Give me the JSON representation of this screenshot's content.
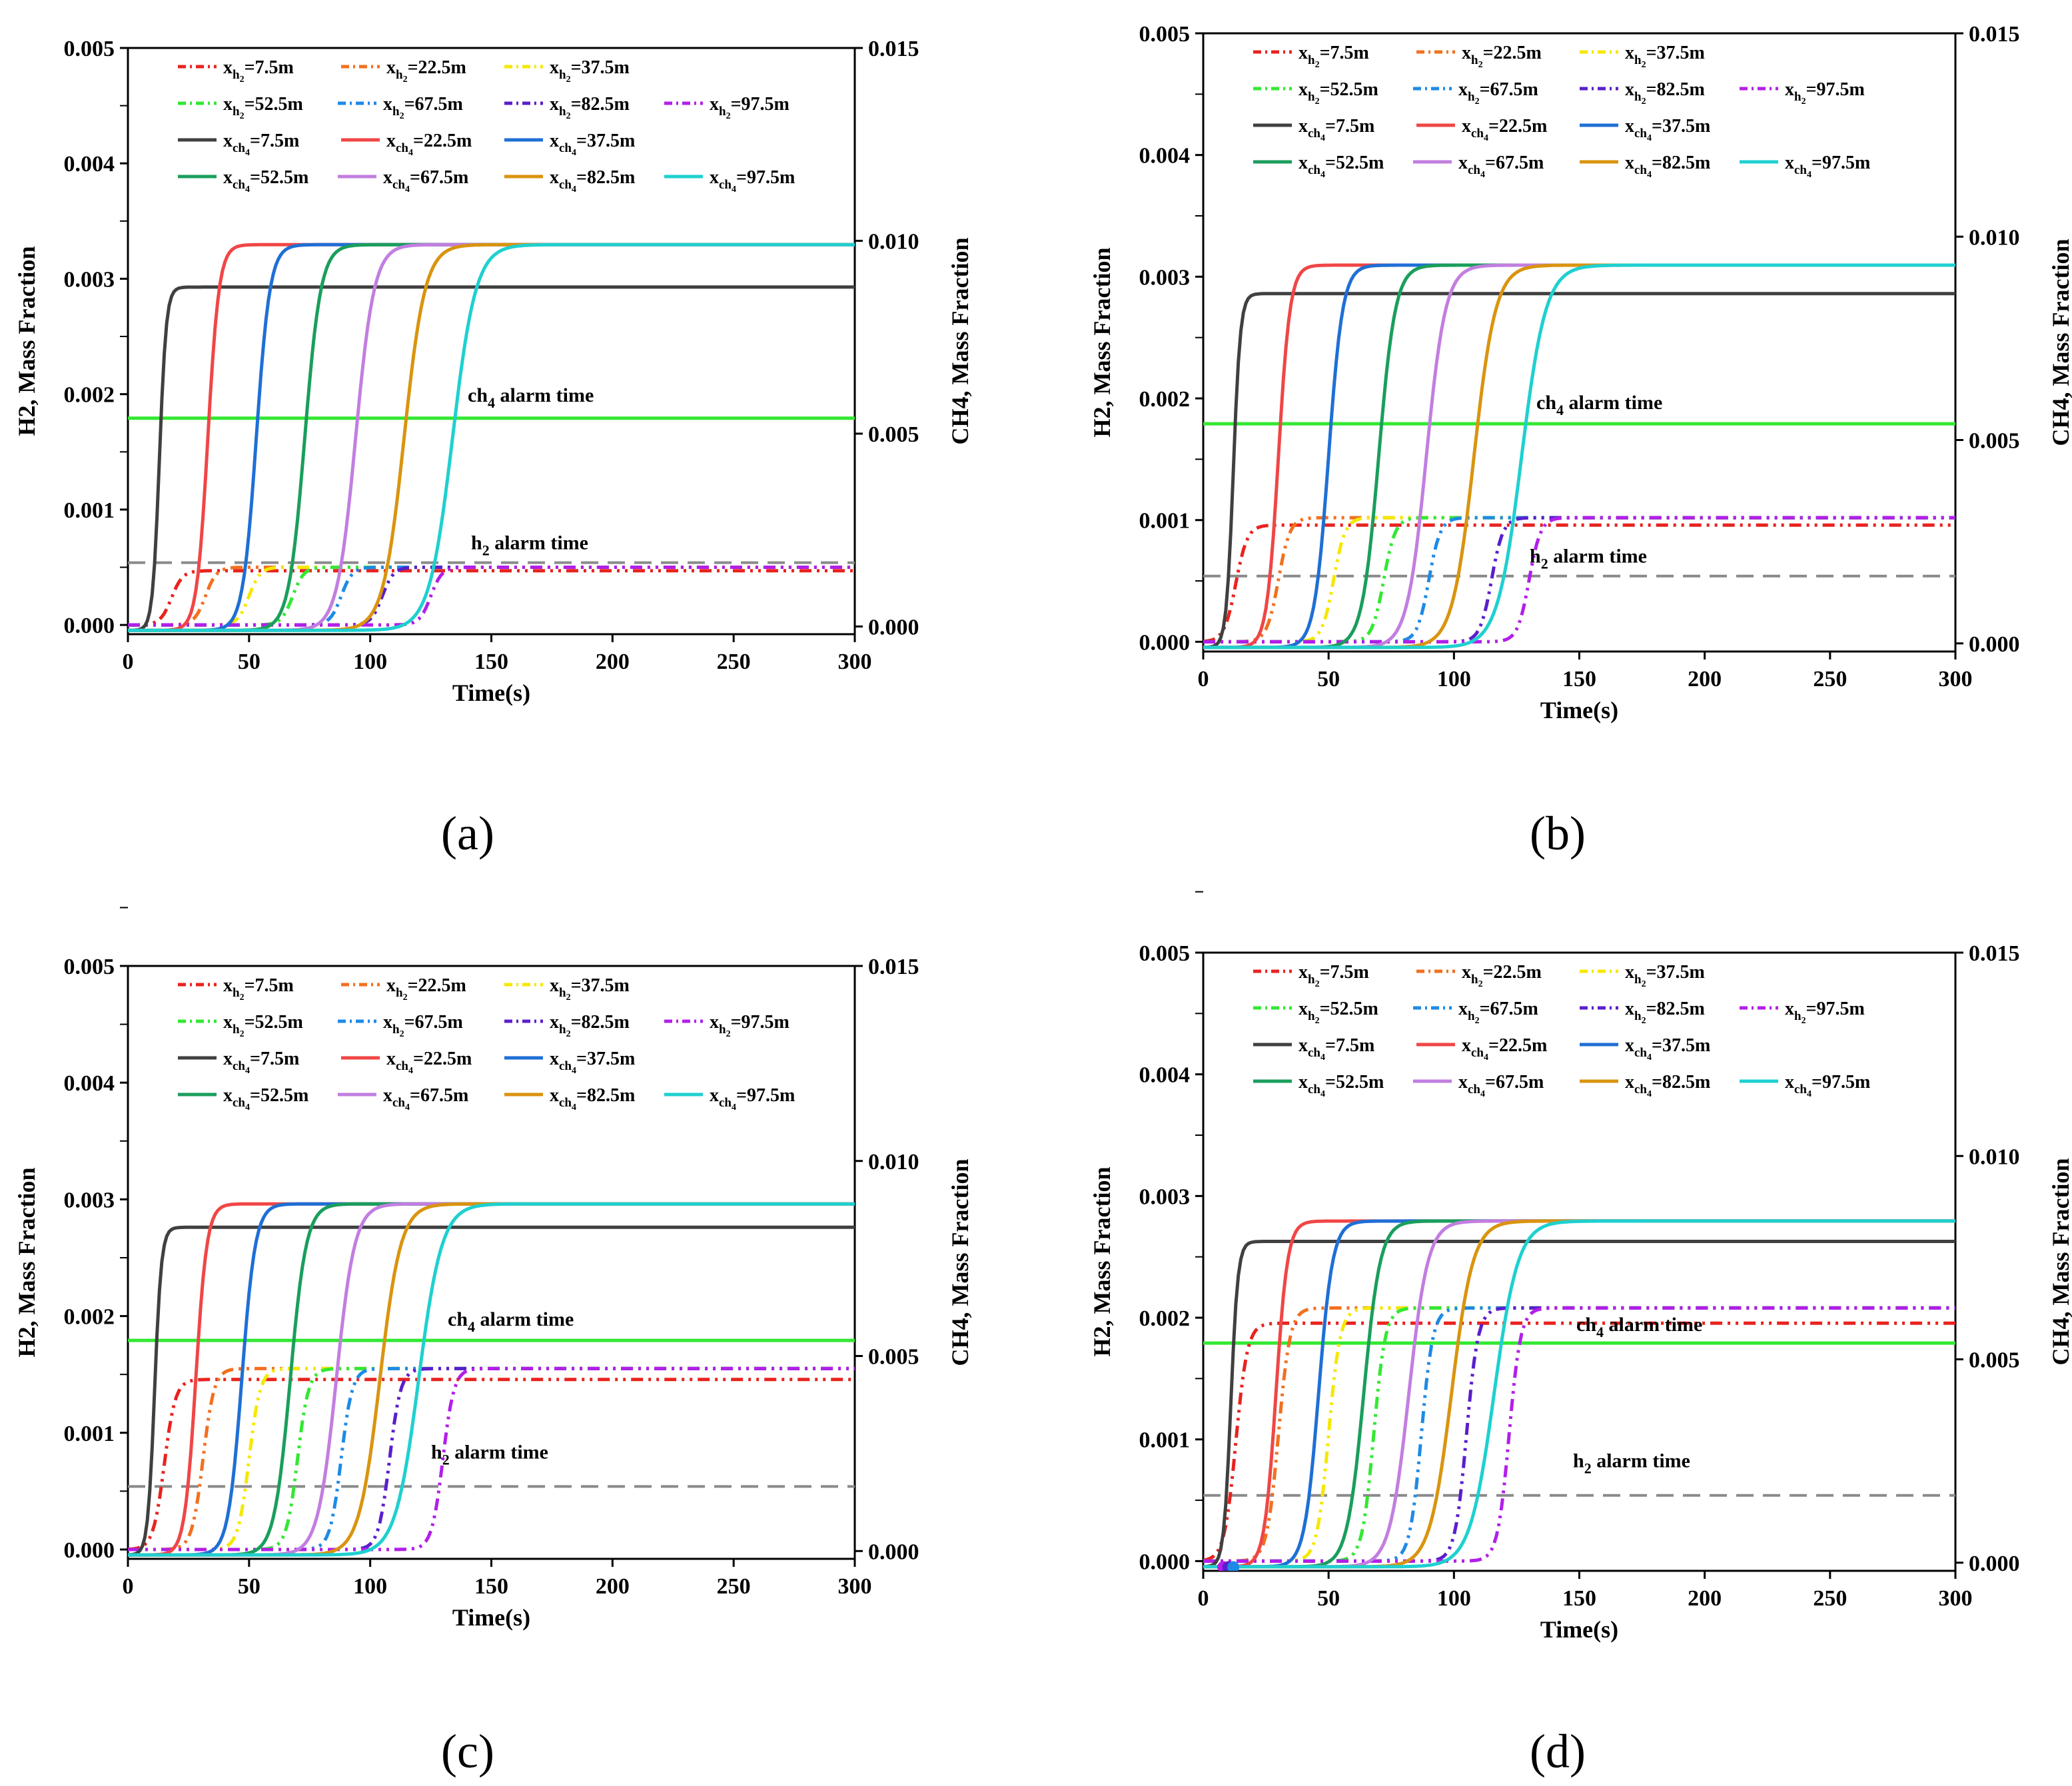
{
  "chart_data": [
    {
      "type": "line",
      "panel_label": "(a)",
      "xlabel": "Time(s)",
      "ylabel_left": "H2, Mass Fraction",
      "ylabel_right": "CH4, Mass Fraction",
      "xlim": [
        0,
        300
      ],
      "ylim_left": [
        -8e-05,
        0.005
      ],
      "ylim_right": [
        -0.0002,
        0.015
      ],
      "xticks": [
        "0",
        "50",
        "100",
        "150",
        "200",
        "250",
        "300"
      ],
      "yticks_left": [
        "0.000",
        "0.001",
        "0.002",
        "0.003",
        "0.004",
        "0.005"
      ],
      "yticks_right": [
        "0.000",
        "0.005",
        "0.010",
        "0.015"
      ],
      "h2_plateau": 0.0005,
      "ch4_plateau_first": 0.0089,
      "ch4_plateau": 0.01,
      "ch4_alarm": {
        "label": "ch4 alarm time",
        "value": 0.0054
      },
      "h2_alarm": {
        "label": "h2 alarm time",
        "value": 0.00054
      },
      "h2_rise_times": [
        18,
        32,
        50,
        68,
        88,
        105,
        125
      ],
      "ch4_rise_times": [
        13,
        33,
        53,
        73,
        94,
        114,
        134
      ],
      "series": [
        {
          "name": "x_h2=7.5m",
          "gas": "h2",
          "pos": "7.5",
          "color": "#e8231f"
        },
        {
          "name": "x_h2=22.5m",
          "gas": "h2",
          "pos": "22.5",
          "color": "#f2701f"
        },
        {
          "name": "x_h2=37.5m",
          "gas": "h2",
          "pos": "37.5",
          "color": "#f5e800"
        },
        {
          "name": "x_h2=52.5m",
          "gas": "h2",
          "pos": "52.5",
          "color": "#33e833"
        },
        {
          "name": "x_h2=67.5m",
          "gas": "h2",
          "pos": "67.5",
          "color": "#1e8ae6"
        },
        {
          "name": "x_h2=82.5m",
          "gas": "h2",
          "pos": "82.5",
          "color": "#5a1fcc"
        },
        {
          "name": "x_h2=97.5m",
          "gas": "h2",
          "pos": "97.5",
          "color": "#b21fe8"
        },
        {
          "name": "x_ch4=7.5m",
          "gas": "ch4",
          "pos": "7.5",
          "color": "#404040"
        },
        {
          "name": "x_ch4=22.5m",
          "gas": "ch4",
          "pos": "22.5",
          "color": "#f04646"
        },
        {
          "name": "x_ch4=37.5m",
          "gas": "ch4",
          "pos": "37.5",
          "color": "#1f6fd6"
        },
        {
          "name": "x_ch4=52.5m",
          "gas": "ch4",
          "pos": "52.5",
          "color": "#1a9e5c"
        },
        {
          "name": "x_ch4=67.5m",
          "gas": "ch4",
          "pos": "67.5",
          "color": "#c27ee0"
        },
        {
          "name": "x_ch4=82.5m",
          "gas": "ch4",
          "pos": "82.5",
          "color": "#d9940f"
        },
        {
          "name": "x_ch4=97.5m",
          "gas": "ch4",
          "pos": "97.5",
          "color": "#1fd0d0"
        }
      ]
    },
    {
      "type": "line",
      "panel_label": "(b)",
      "xlabel": "Time(s)",
      "ylabel_left": "H2, Mass Fraction",
      "ylabel_right": "CH4, Mass Fraction",
      "xlim": [
        0,
        300
      ],
      "ylim_left": [
        -8e-05,
        0.005
      ],
      "ylim_right": [
        -0.0002,
        0.015
      ],
      "xticks": [
        "0",
        "50",
        "100",
        "150",
        "200",
        "250",
        "300"
      ],
      "yticks_left": [
        "0.000",
        "0.001",
        "0.002",
        "0.003",
        "0.004",
        "0.005"
      ],
      "yticks_right": [
        "0.000",
        "0.005",
        "0.010",
        "0.015"
      ],
      "h2_plateau": 0.00102,
      "ch4_plateau_first": 0.0087,
      "ch4_plateau": 0.0094,
      "ch4_alarm": {
        "label": "ch4 alarm time",
        "value": 0.0054
      },
      "h2_alarm": {
        "label": "h2 alarm time",
        "value": 0.00054
      },
      "h2_rise_times": [
        13,
        30,
        52,
        72,
        90,
        115,
        130
      ],
      "ch4_rise_times": [
        12,
        30,
        50,
        70,
        89,
        108,
        127
      ],
      "series": [
        {
          "name": "x_h2=7.5m",
          "gas": "h2",
          "pos": "7.5",
          "color": "#e8231f"
        },
        {
          "name": "x_h2=22.5m",
          "gas": "h2",
          "pos": "22.5",
          "color": "#f2701f"
        },
        {
          "name": "x_h2=37.5m",
          "gas": "h2",
          "pos": "37.5",
          "color": "#f5e800"
        },
        {
          "name": "x_h2=52.5m",
          "gas": "h2",
          "pos": "52.5",
          "color": "#33e833"
        },
        {
          "name": "x_h2=67.5m",
          "gas": "h2",
          "pos": "67.5",
          "color": "#1e8ae6"
        },
        {
          "name": "x_h2=82.5m",
          "gas": "h2",
          "pos": "82.5",
          "color": "#5a1fcc"
        },
        {
          "name": "x_h2=97.5m",
          "gas": "h2",
          "pos": "97.5",
          "color": "#b21fe8"
        },
        {
          "name": "x_ch4=7.5m",
          "gas": "ch4",
          "pos": "7.5",
          "color": "#404040"
        },
        {
          "name": "x_ch4=22.5m",
          "gas": "ch4",
          "pos": "22.5",
          "color": "#f04646"
        },
        {
          "name": "x_ch4=37.5m",
          "gas": "ch4",
          "pos": "37.5",
          "color": "#1f6fd6"
        },
        {
          "name": "x_ch4=52.5m",
          "gas": "ch4",
          "pos": "52.5",
          "color": "#1a9e5c"
        },
        {
          "name": "x_ch4=67.5m",
          "gas": "ch4",
          "pos": "67.5",
          "color": "#c27ee0"
        },
        {
          "name": "x_ch4=82.5m",
          "gas": "ch4",
          "pos": "82.5",
          "color": "#d9940f"
        },
        {
          "name": "x_ch4=97.5m",
          "gas": "ch4",
          "pos": "97.5",
          "color": "#1fd0d0"
        }
      ]
    },
    {
      "type": "line",
      "panel_label": "(c)",
      "xlabel": "Time(s)",
      "ylabel_left": "H2, Mass Fraction",
      "ylabel_right": "CH4, Mass Fraction",
      "xlim": [
        0,
        300
      ],
      "ylim_left": [
        -8e-05,
        0.005
      ],
      "ylim_right": [
        -0.0002,
        0.015
      ],
      "xticks": [
        "0",
        "50",
        "100",
        "150",
        "200",
        "250",
        "300"
      ],
      "yticks_left": [
        "0.000",
        "0.001",
        "0.002",
        "0.003",
        "0.004",
        "0.005"
      ],
      "yticks_right": [
        "0.000",
        "0.005",
        "0.010",
        "0.015"
      ],
      "h2_plateau": 0.00155,
      "ch4_plateau_first": 0.0084,
      "ch4_plateau": 0.009,
      "ch4_alarm": {
        "label": "ch4 alarm time",
        "value": 0.0054
      },
      "h2_alarm": {
        "label": "h2 alarm time",
        "value": 0.00054
      },
      "h2_rise_times": [
        15,
        31,
        50,
        70,
        88,
        108,
        130
      ],
      "ch4_rise_times": [
        11,
        28,
        47,
        67,
        86,
        104,
        120
      ],
      "series": [
        {
          "name": "x_h2=7.5m",
          "gas": "h2",
          "pos": "7.5",
          "color": "#e8231f"
        },
        {
          "name": "x_h2=22.5m",
          "gas": "h2",
          "pos": "22.5",
          "color": "#f2701f"
        },
        {
          "name": "x_h2=37.5m",
          "gas": "h2",
          "pos": "37.5",
          "color": "#f5e800"
        },
        {
          "name": "x_h2=52.5m",
          "gas": "h2",
          "pos": "52.5",
          "color": "#33e833"
        },
        {
          "name": "x_h2=67.5m",
          "gas": "h2",
          "pos": "67.5",
          "color": "#1e8ae6"
        },
        {
          "name": "x_h2=82.5m",
          "gas": "h2",
          "pos": "82.5",
          "color": "#5a1fcc"
        },
        {
          "name": "x_h2=97.5m",
          "gas": "h2",
          "pos": "97.5",
          "color": "#b21fe8"
        },
        {
          "name": "x_ch4=7.5m",
          "gas": "ch4",
          "pos": "7.5",
          "color": "#404040"
        },
        {
          "name": "x_ch4=22.5m",
          "gas": "ch4",
          "pos": "22.5",
          "color": "#f04646"
        },
        {
          "name": "x_ch4=37.5m",
          "gas": "ch4",
          "pos": "37.5",
          "color": "#1f6fd6"
        },
        {
          "name": "x_ch4=52.5m",
          "gas": "ch4",
          "pos": "52.5",
          "color": "#1a9e5c"
        },
        {
          "name": "x_ch4=67.5m",
          "gas": "ch4",
          "pos": "67.5",
          "color": "#c27ee0"
        },
        {
          "name": "x_ch4=82.5m",
          "gas": "ch4",
          "pos": "82.5",
          "color": "#d9940f"
        },
        {
          "name": "x_ch4=97.5m",
          "gas": "ch4",
          "pos": "97.5",
          "color": "#1fd0d0"
        }
      ]
    },
    {
      "type": "line",
      "panel_label": "(d)",
      "xlabel": "Time(s)",
      "ylabel_left": "H2, Mass Fraction",
      "ylabel_right": "CH4, Mass Fraction",
      "xlim": [
        0,
        300
      ],
      "ylim_left": [
        -8e-05,
        0.005
      ],
      "ylim_right": [
        -0.0002,
        0.015
      ],
      "xticks": [
        "0",
        "50",
        "100",
        "150",
        "200",
        "250",
        "300"
      ],
      "yticks_left": [
        "0.000",
        "0.001",
        "0.002",
        "0.003",
        "0.004",
        "0.005"
      ],
      "yticks_right": [
        "0.000",
        "0.005",
        "0.010",
        "0.015"
      ],
      "h2_plateau": 0.00208,
      "ch4_plateau_first": 0.008,
      "ch4_plateau": 0.0085,
      "ch4_alarm": {
        "label": "ch4 alarm time",
        "value": 0.0054
      },
      "h2_alarm": {
        "label": "h2 alarm time",
        "value": 0.00054
      },
      "h2_rise_times": [
        13,
        30,
        50,
        68,
        87,
        105,
        122
      ],
      "ch4_rise_times": [
        11,
        29,
        46,
        64,
        82,
        99,
        116
      ],
      "series": [
        {
          "name": "x_h2=7.5m",
          "gas": "h2",
          "pos": "7.5",
          "color": "#e8231f"
        },
        {
          "name": "x_h2=22.5m",
          "gas": "h2",
          "pos": "22.5",
          "color": "#f2701f"
        },
        {
          "name": "x_h2=37.5m",
          "gas": "h2",
          "pos": "37.5",
          "color": "#f5e800"
        },
        {
          "name": "x_h2=52.5m",
          "gas": "h2",
          "pos": "52.5",
          "color": "#33e833"
        },
        {
          "name": "x_h2=67.5m",
          "gas": "h2",
          "pos": "67.5",
          "color": "#1e8ae6"
        },
        {
          "name": "x_h2=82.5m",
          "gas": "h2",
          "pos": "82.5",
          "color": "#5a1fcc"
        },
        {
          "name": "x_h2=97.5m",
          "gas": "h2",
          "pos": "97.5",
          "color": "#b21fe8"
        },
        {
          "name": "x_ch4=7.5m",
          "gas": "ch4",
          "pos": "7.5",
          "color": "#404040"
        },
        {
          "name": "x_ch4=22.5m",
          "gas": "ch4",
          "pos": "22.5",
          "color": "#f04646"
        },
        {
          "name": "x_ch4=37.5m",
          "gas": "ch4",
          "pos": "37.5",
          "color": "#1f6fd6"
        },
        {
          "name": "x_ch4=52.5m",
          "gas": "ch4",
          "pos": "52.5",
          "color": "#1a9e5c"
        },
        {
          "name": "x_ch4=67.5m",
          "gas": "ch4",
          "pos": "67.5",
          "color": "#c27ee0"
        },
        {
          "name": "x_ch4=82.5m",
          "gas": "ch4",
          "pos": "82.5",
          "color": "#d9940f"
        },
        {
          "name": "x_ch4=97.5m",
          "gas": "ch4",
          "pos": "97.5",
          "color": "#1fd0d0"
        }
      ]
    }
  ]
}
